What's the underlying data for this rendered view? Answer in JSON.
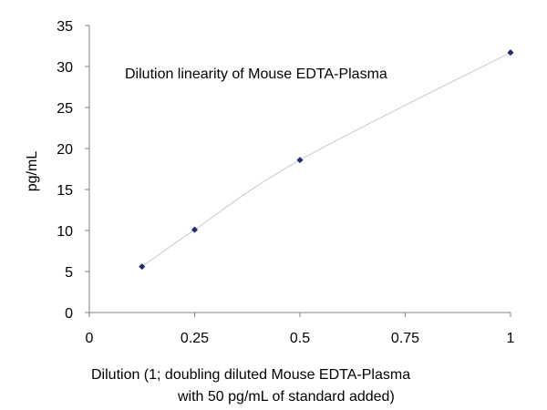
{
  "chart_data": {
    "type": "scatter",
    "title": "Dilution linearity of Mouse EDTA-Plasma",
    "xlabel_line1": "Dilution (1; doubling diluted Mouse EDTA-Plasma",
    "xlabel_line2": "with 50 pg/mL of standard added)",
    "ylabel": "pg/mL",
    "xlim": [
      0,
      1
    ],
    "ylim": [
      0,
      35
    ],
    "x_ticks": [
      0,
      0.25,
      0.5,
      0.75,
      1
    ],
    "x_tick_labels": [
      "0",
      "0.25",
      "0.5",
      "0.75",
      "1"
    ],
    "y_ticks": [
      0,
      5,
      10,
      15,
      20,
      25,
      30,
      35
    ],
    "y_tick_labels": [
      "0",
      "5",
      "10",
      "15",
      "20",
      "25",
      "30",
      "35"
    ],
    "grid": false,
    "series": [
      {
        "x": [
          0.125,
          0.25,
          0.5,
          1
        ],
        "y": [
          5.6,
          10.1,
          18.6,
          31.7
        ],
        "marker_color": "#1f2d6b",
        "line_color": "#c8c8c8",
        "smooth_line": true
      }
    ]
  }
}
